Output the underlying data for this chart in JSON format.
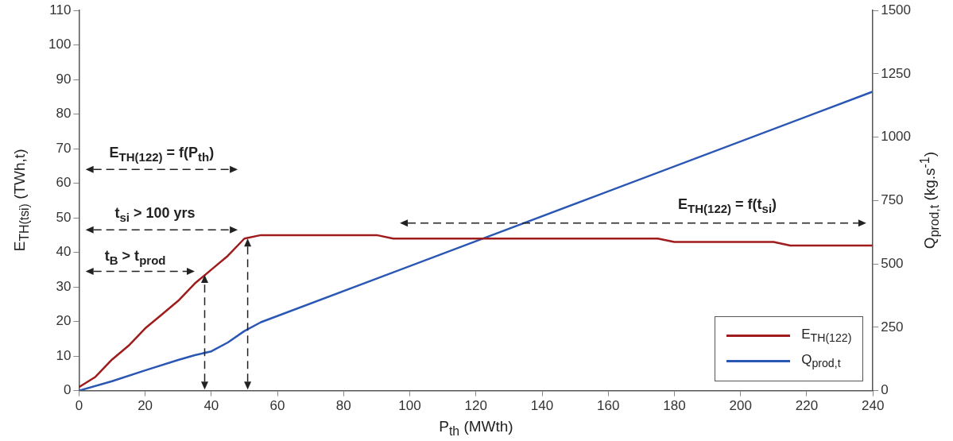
{
  "chart_data": {
    "type": "line",
    "xlabel": "P$_{th}$ (MWth)",
    "ylabel": "E$_{TH(tsi)}$ (TWh,t)",
    "y2label": "Q$_{prod,t}$ (kg.s$^{-1}$)",
    "xlim": [
      0,
      240
    ],
    "xticks": [
      0,
      20,
      40,
      60,
      80,
      100,
      120,
      140,
      160,
      180,
      200,
      220,
      240
    ],
    "ylim": [
      0,
      110
    ],
    "yticks": [
      0,
      10,
      20,
      30,
      40,
      50,
      60,
      70,
      80,
      90,
      100,
      110
    ],
    "y2lim": [
      0,
      1500
    ],
    "y2ticks": [
      0,
      250,
      500,
      750,
      1000,
      1250,
      1500
    ],
    "grid": false,
    "legend": "bottom right",
    "marker": "none",
    "line_style": "solid",
    "series": [
      {
        "name": "E$_{TH(122)}$",
        "color": "#a01c1c",
        "x": [
          0,
          5,
          10,
          15,
          20,
          25,
          30,
          35,
          40,
          45,
          50,
          55,
          90,
          95,
          175,
          180,
          210,
          215,
          240
        ],
        "values": [
          1,
          4,
          9,
          13,
          18,
          22,
          26,
          31,
          35,
          39,
          44,
          45,
          45,
          44,
          44,
          43,
          43,
          42,
          42
        ]
      },
      {
        "name": "Q$_{prod,t}$",
        "color": "#2a56b4",
        "axis": "y2",
        "x": [
          0,
          10,
          20,
          30,
          35,
          40,
          45,
          50,
          55,
          240
        ],
        "values": [
          0,
          37,
          80,
          121,
          140,
          155,
          190,
          235,
          270,
          1180
        ]
      }
    ],
    "annotations": [
      "E$_{TH(122)}$ = f(P$_{th}$)",
      "t$_{si}$ > 100 yrs",
      "t$_{B}$ > t$_{prod}$",
      "E$_{TH(122)}$ = f(t$_{si}$)"
    ]
  }
}
